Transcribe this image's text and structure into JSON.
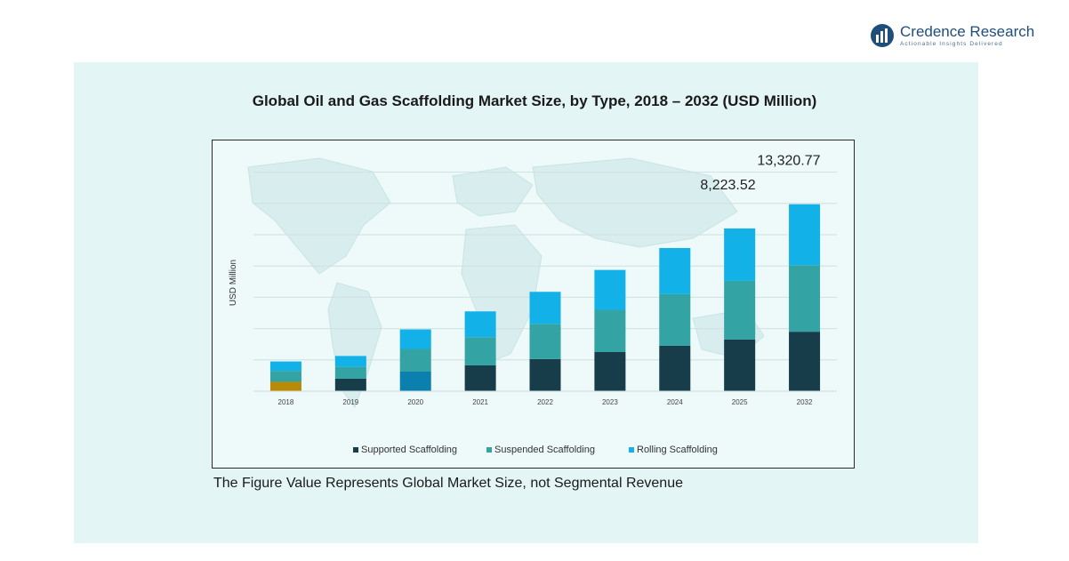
{
  "brand": {
    "name": "Credence Research",
    "tagline": "Actionable Insights Delivered",
    "color": "#1f4e7a"
  },
  "footnote": "The Figure Value Represents Global Market Size, not Segmental Revenue",
  "chart_data": {
    "type": "bar",
    "stacked": true,
    "title": "Global Oil and Gas Scaffolding Market Size, by Type, 2018 – 2032 (USD Million)",
    "xlabel": "",
    "ylabel": "USD Million",
    "ylim": [
      0,
      15000
    ],
    "grid": true,
    "legend_position": "bottom",
    "categories": [
      "2018",
      "2019",
      "2020",
      "2021",
      "2022",
      "2023",
      "2024",
      "2025",
      "2032"
    ],
    "series": [
      {
        "name": "Supported Scaffolding",
        "color": "#173d4a",
        "values": [
          600,
          800,
          1250,
          1650,
          2050,
          2500,
          2900,
          3300,
          3800
        ]
      },
      {
        "name": "Suspended Scaffolding",
        "color": "#34a3a3",
        "values": [
          700,
          750,
          1450,
          1800,
          2250,
          2700,
          3300,
          3750,
          4250
        ]
      },
      {
        "name": "Rolling Scaffolding",
        "color": "#12b1e8",
        "values": [
          600,
          700,
          1250,
          1650,
          2050,
          2550,
          2950,
          3350,
          3900
        ]
      }
    ],
    "bar_color_overrides": [
      {
        "category": "2018",
        "series": "Supported Scaffolding",
        "color": "#b88a06"
      },
      {
        "category": "2020",
        "series": "Supported Scaffolding",
        "color": "#0b7fae"
      }
    ],
    "annotations": [
      {
        "category": "2025",
        "text": "8,223.52"
      },
      {
        "category": "2032",
        "text": "13,320.77"
      }
    ]
  }
}
